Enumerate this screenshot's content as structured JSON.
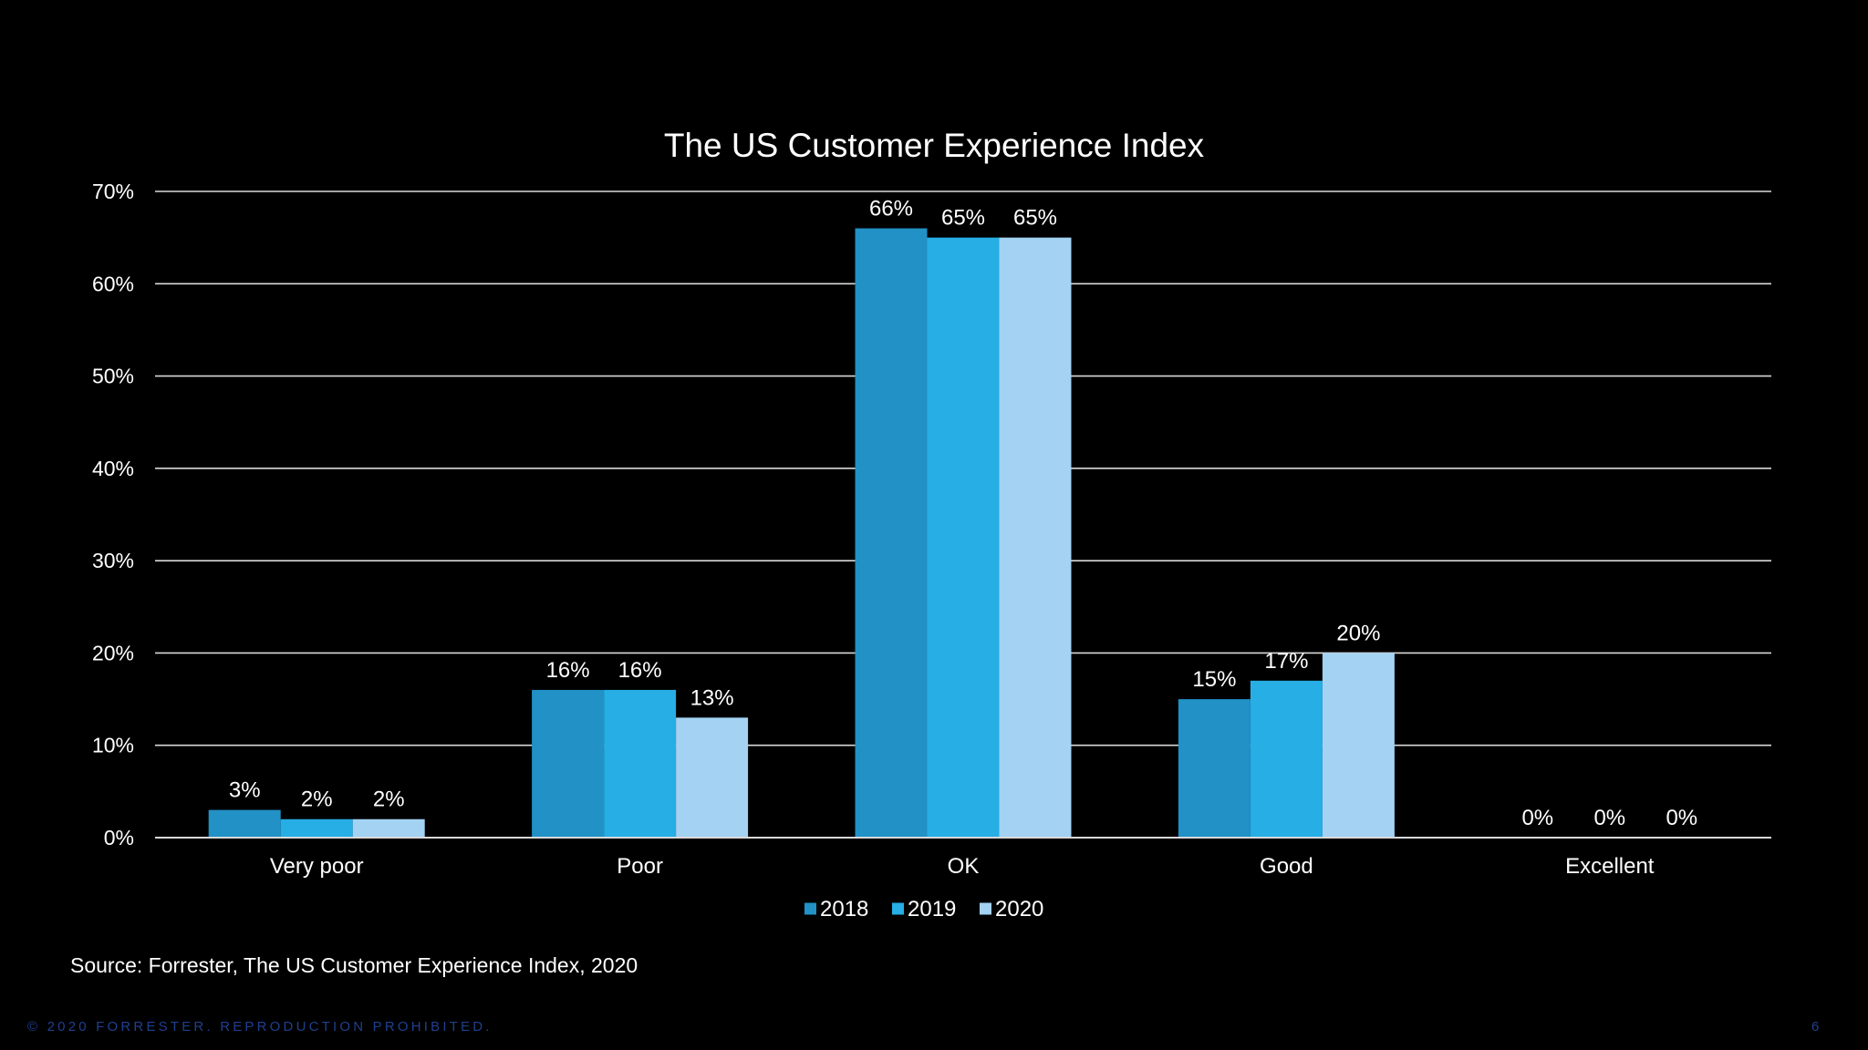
{
  "chart_data": {
    "type": "bar",
    "title": "The US Customer Experience Index",
    "xlabel": "",
    "ylabel": "",
    "categories": [
      "Very poor",
      "Poor",
      "OK",
      "Good",
      "Excellent"
    ],
    "series": [
      {
        "name": "2018",
        "values": [
          3,
          16,
          66,
          15,
          0
        ],
        "labels": [
          "3%",
          "16%",
          "66%",
          "15%",
          "0%"
        ],
        "color": "#2191C6"
      },
      {
        "name": "2019",
        "values": [
          2,
          16,
          65,
          17,
          0
        ],
        "labels": [
          "2%",
          "16%",
          "65%",
          "17%",
          "0%"
        ],
        "color": "#26AEE5"
      },
      {
        "name": "2020",
        "values": [
          2,
          13,
          65,
          20,
          0
        ],
        "labels": [
          "2%",
          "13%",
          "65%",
          "20%",
          "0%"
        ],
        "color": "#A4D2F2"
      }
    ],
    "ylim": [
      0,
      70
    ],
    "yticks": [
      0,
      10,
      20,
      30,
      40,
      50,
      60,
      70
    ],
    "ytick_labels": [
      "0%",
      "10%",
      "20%",
      "30%",
      "40%",
      "50%",
      "60%",
      "70%"
    ],
    "grid": true,
    "legend_position": "bottom-center"
  },
  "footer": {
    "source": "Source: Forrester, The US Customer Experience Index, 2020",
    "copyright": "© 2020 FORRESTER. REPRODUCTION PROHIBITED.",
    "page_number": "6"
  },
  "colors": {
    "background": "#000000",
    "text": "#ffffff",
    "gridline": "#d9d9d9",
    "footer_text": "#1f3f8f"
  }
}
